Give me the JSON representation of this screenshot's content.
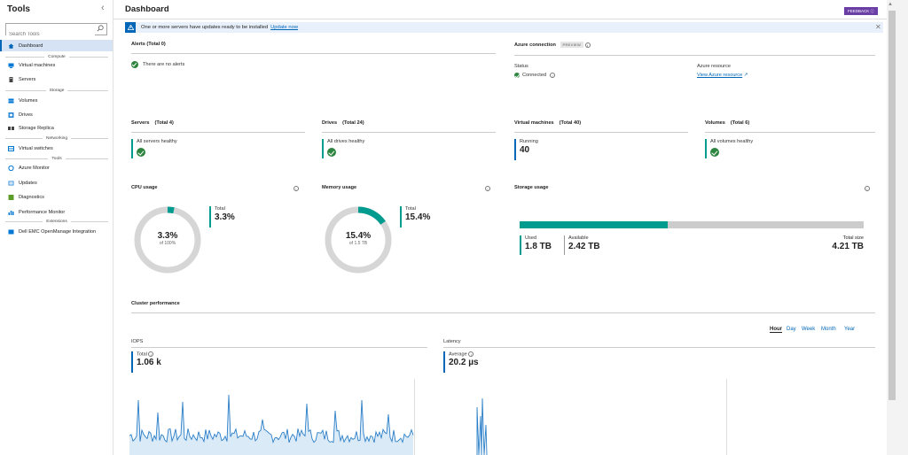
{
  "sidebar": {
    "title": "Tools",
    "search_placeholder": "Search Tools",
    "items": {
      "dashboard": "Dashboard",
      "virtual_machines": "Virtual machines",
      "servers": "Servers",
      "volumes": "Volumes",
      "drives": "Drives",
      "storage_replica": "Storage Replica",
      "virtual_switches": "Virtual switches",
      "azure_monitor": "Azure Monitor",
      "updates": "Updates",
      "diagnostics": "Diagnostics",
      "performance_monitor": "Performance Monitor",
      "dell_emc": "Dell EMC OpenManage Integration"
    },
    "sections": {
      "compute": "Compute",
      "storage": "Storage",
      "networking": "Networking",
      "tools": "Tools",
      "extensions": "Extensions"
    }
  },
  "header": {
    "title": "Dashboard",
    "feedback": "FEEDBACK"
  },
  "banner": {
    "text": "One or more servers have updates ready to be installed",
    "link": "Update now"
  },
  "alerts": {
    "title": "Alerts (Total 0)",
    "message": "There are no alerts"
  },
  "azure": {
    "title": "Azure connection",
    "badge": "PREVIEW",
    "status_label": "Status",
    "status_value": "Connected",
    "resource_label": "Azure resource",
    "resource_link": "View Azure resource"
  },
  "servers": {
    "title": "Servers",
    "total": "(Total 4)",
    "status": "All servers healthy"
  },
  "drives": {
    "title": "Drives",
    "total": "(Total 24)",
    "status": "All drives healthy"
  },
  "vms": {
    "title": "Virtual machines",
    "total": "(Total 40)",
    "label": "Running",
    "value": "40"
  },
  "volumes": {
    "title": "Volumes",
    "total": "(Total 6)",
    "status": "All volumes healthy"
  },
  "cpu": {
    "title": "CPU usage",
    "label": "Total",
    "value": "3.3%",
    "percent": 3.3,
    "center": "3.3%",
    "sub": "of 100%"
  },
  "memory": {
    "title": "Memory usage",
    "label": "Total",
    "value": "15.4%",
    "percent": 15.4,
    "center": "15.4%",
    "sub": "of 1.5 TB"
  },
  "storage": {
    "title": "Storage usage",
    "used_fraction": 0.43,
    "used_label": "Used",
    "used_value": "1.8 TB",
    "available_label": "Available",
    "available_value": "2.42 TB",
    "total_label": "Total size",
    "total_value": "4.21 TB"
  },
  "cluster": {
    "title": "Cluster performance",
    "ranges": [
      "Hour",
      "Day",
      "Week",
      "Month",
      "Year"
    ],
    "active_range": "Hour",
    "iops": {
      "title": "IOPS",
      "label": "Total",
      "value": "1.06 k"
    },
    "latency": {
      "title": "Latency",
      "label": "Average",
      "value": "20.2 µs"
    }
  },
  "colors": {
    "accent": "#0067b8",
    "teal": "#009b8f",
    "healthy": "#2e8540",
    "feedback": "#6b3ea6"
  }
}
